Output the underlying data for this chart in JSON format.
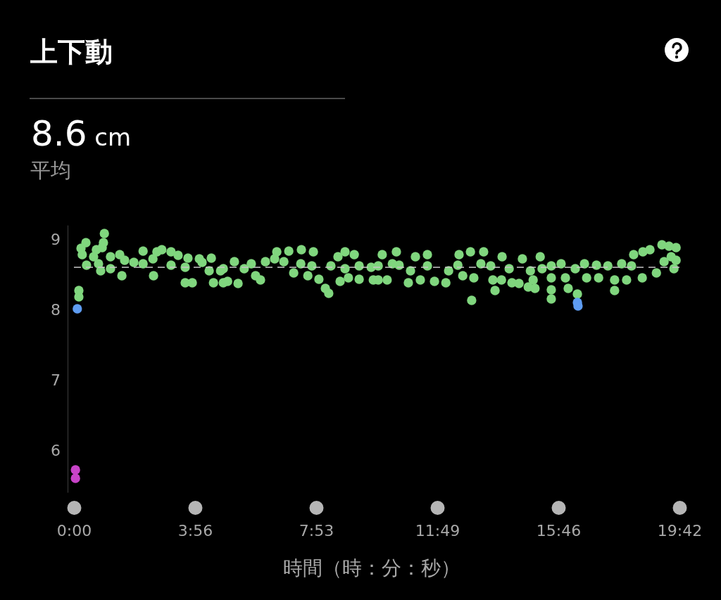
{
  "chart_data": {
    "type": "scatter",
    "title": "上下動",
    "subtitle": "8.6 cm",
    "annotations": [
      "平均"
    ],
    "xlabel": "時間（時：分：秒）",
    "xlim": [
      0,
      19.7
    ],
    "xticks": [
      {
        "value": 0,
        "label": "0:00"
      },
      {
        "value": 3.94,
        "label": "3:56"
      },
      {
        "value": 7.88,
        "label": "7:53"
      },
      {
        "value": 11.82,
        "label": "11:49"
      },
      {
        "value": 15.76,
        "label": "15:46"
      },
      {
        "value": 19.7,
        "label": "19:42"
      }
    ],
    "ylim": [
      5.4,
      9.2
    ],
    "yticks": [
      6,
      7,
      8,
      9
    ],
    "marker": "circle",
    "ref_lines": [
      {
        "axis": "y",
        "value": 8.6,
        "color": "#c8c8c8",
        "line_style": "dashed"
      }
    ],
    "series": [
      {
        "color": "#80d67e",
        "x": [
          0.23,
          0.39,
          0.27,
          0.99,
          0.96,
          0.92,
          0.73,
          0.64,
          0.41,
          0.8,
          0.87,
          1.19,
          1.19,
          1.49,
          1.56,
          1.65,
          1.95,
          2.25,
          2.25,
          2.57,
          2.59,
          2.7,
          2.86,
          3.16,
          3.39,
          3.16,
          3.62,
          3.71,
          4.08,
          4.17,
          4.47,
          4.4,
          4.77,
          3.62,
          3.85,
          4.54,
          4.86,
          0.16,
          0.16,
          5.22,
          5.0,
          5.34,
          5.54,
          5.77,
          5.91,
          6.07,
          6.23,
          6.53,
          6.6,
          6.99,
          6.83,
          7.4,
          7.79,
          7.38,
          7.74,
          7.15,
          7.61,
          7.97,
          8.18,
          8.29,
          8.36,
          8.59,
          8.82,
          9.12,
          8.66,
          8.93,
          9.28,
          9.28,
          9.74,
          9.67,
          8.82,
          4.86,
          10.03,
          10.49,
          9.9,
          10.36,
          9.9,
          10.19,
          10.58,
          10.88,
          11.11,
          10.95,
          11.27,
          11.5,
          11.5,
          11.73,
          12.1,
          12.19,
          12.49,
          12.53,
          12.9,
          12.65,
          13.01,
          13.33,
          13.24,
          13.56,
          12.94,
          13.63,
          13.7,
          13.91,
          13.93,
          14.16,
          14.25,
          14.59,
          14.48,
          14.78,
          14.85,
          15.17,
          14.94,
          15.0,
          15.23,
          15.53,
          15.85,
          15.53,
          15.53,
          15.53,
          15.99,
          16.08,
          16.31,
          16.38,
          16.61,
          16.68,
          17.0,
          17.07,
          17.37,
          17.59,
          17.59,
          17.82,
          17.98,
          18.21,
          18.14,
          18.49,
          18.51,
          18.74,
          18.95,
          19.13,
          19.36,
          19.59,
          19.43,
          19.2,
          19.52,
          19.59
        ],
        "values": [
          8.87,
          8.95,
          8.78,
          9.08,
          8.95,
          8.88,
          8.85,
          8.75,
          8.63,
          8.65,
          8.55,
          8.75,
          8.58,
          8.78,
          8.48,
          8.7,
          8.67,
          8.83,
          8.65,
          8.72,
          8.48,
          8.82,
          8.85,
          8.82,
          8.77,
          8.63,
          8.6,
          8.73,
          8.72,
          8.67,
          8.73,
          8.55,
          8.55,
          8.38,
          8.38,
          8.38,
          8.38,
          8.27,
          8.18,
          8.68,
          8.4,
          8.37,
          8.58,
          8.65,
          8.48,
          8.42,
          8.68,
          8.72,
          8.82,
          8.83,
          8.68,
          8.85,
          8.82,
          8.65,
          8.62,
          8.52,
          8.48,
          8.43,
          8.3,
          8.23,
          8.62,
          8.75,
          8.82,
          8.78,
          8.4,
          8.45,
          8.62,
          8.43,
          8.42,
          8.6,
          8.58,
          8.58,
          8.78,
          8.82,
          8.62,
          8.65,
          8.42,
          8.42,
          8.63,
          8.38,
          8.75,
          8.55,
          8.42,
          8.78,
          8.62,
          8.4,
          8.38,
          8.55,
          8.63,
          8.78,
          8.82,
          8.48,
          8.45,
          8.82,
          8.65,
          8.62,
          8.13,
          8.42,
          8.27,
          8.42,
          8.75,
          8.58,
          8.38,
          8.72,
          8.37,
          8.32,
          8.55,
          8.75,
          8.42,
          8.3,
          8.58,
          8.62,
          8.65,
          8.45,
          8.28,
          8.15,
          8.45,
          8.3,
          8.58,
          8.22,
          8.65,
          8.45,
          8.63,
          8.45,
          8.62,
          8.42,
          8.27,
          8.65,
          8.42,
          8.78,
          8.62,
          8.45,
          8.82,
          8.85,
          8.52,
          8.92,
          8.9,
          8.88,
          8.75,
          8.68,
          8.58,
          8.7
        ]
      },
      {
        "color": "#5e9cf2",
        "x": [
          0.11,
          16.38,
          16.4
        ],
        "values": [
          8.01,
          8.1,
          8.05
        ]
      },
      {
        "color": "#c843c8",
        "x": [
          0.05,
          0.05
        ],
        "values": [
          5.72,
          5.6
        ]
      }
    ]
  }
}
